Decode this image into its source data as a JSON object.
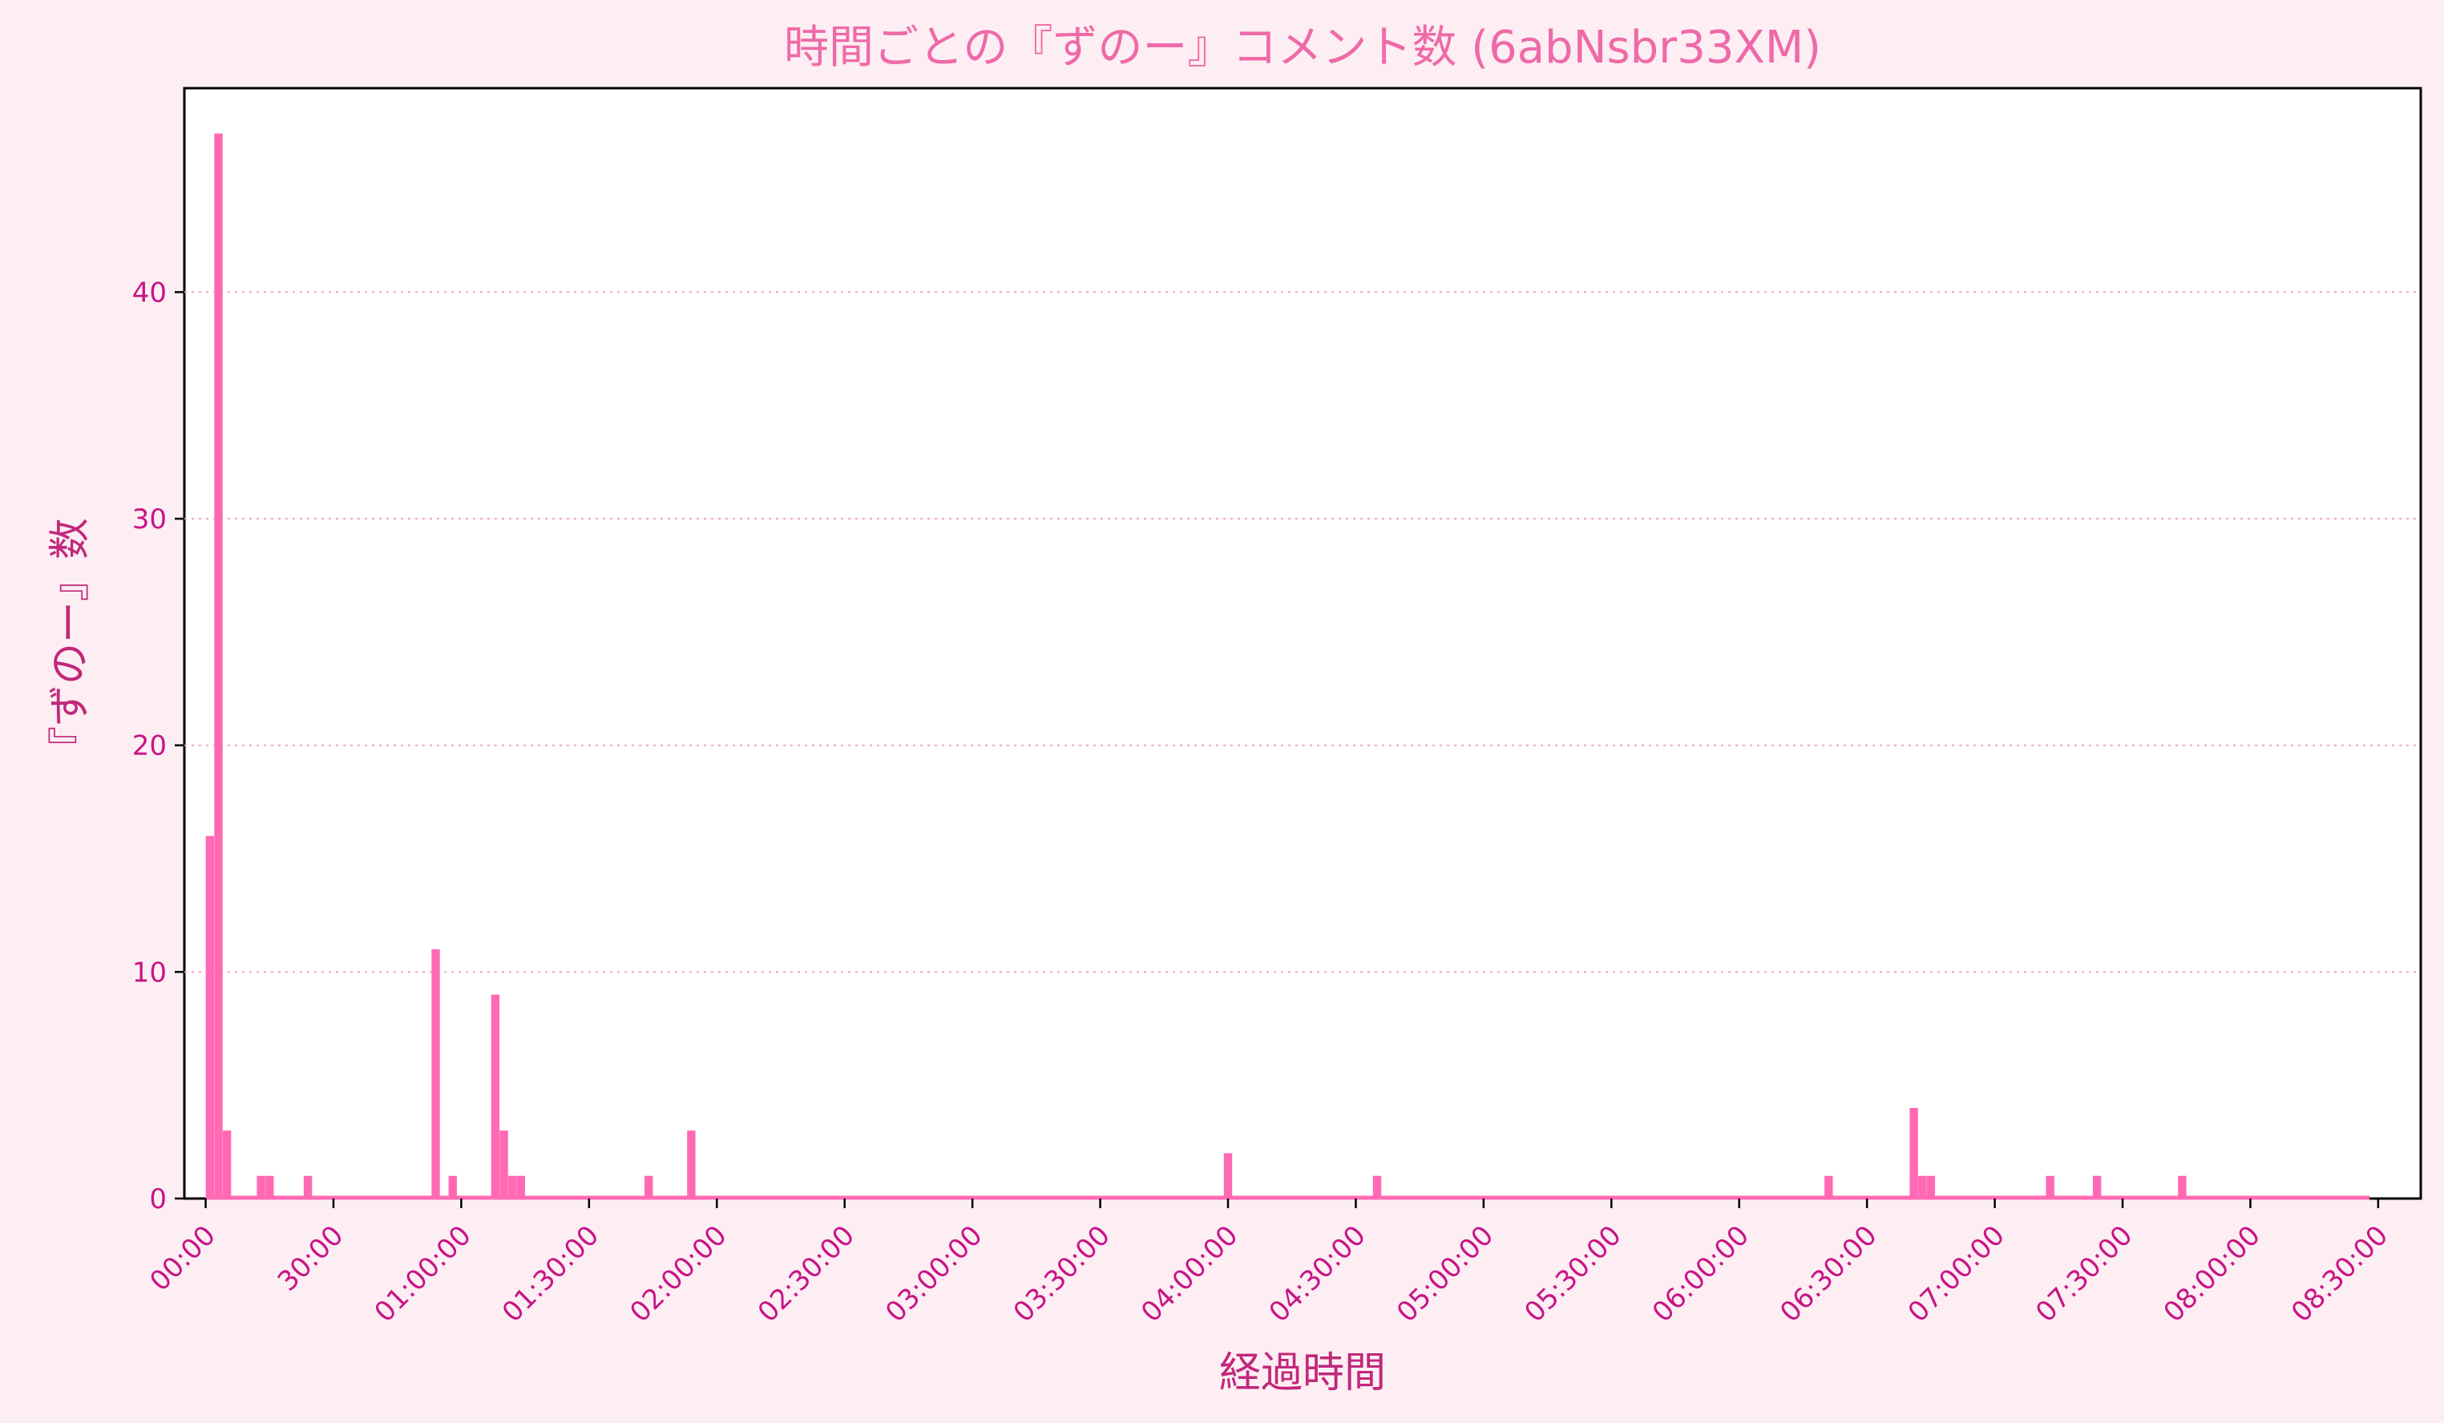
{
  "chart_data": {
    "type": "bar",
    "title": "時間ごとの『ずのー』コメント数 (6abNsbr33XM)",
    "xlabel": "経過時間",
    "ylabel": "『ずのー』数",
    "x_unit": "minutes",
    "bin_minutes": 2,
    "xlim": [
      -5,
      520
    ],
    "ylim": [
      0,
      49
    ],
    "baseline_range": [
      0,
      508
    ],
    "xticks": [
      {
        "value": 0,
        "label": "00:00"
      },
      {
        "value": 30,
        "label": "30:00"
      },
      {
        "value": 60,
        "label": "01:00:00"
      },
      {
        "value": 90,
        "label": "01:30:00"
      },
      {
        "value": 120,
        "label": "02:00:00"
      },
      {
        "value": 150,
        "label": "02:30:00"
      },
      {
        "value": 180,
        "label": "03:00:00"
      },
      {
        "value": 210,
        "label": "03:30:00"
      },
      {
        "value": 240,
        "label": "04:00:00"
      },
      {
        "value": 270,
        "label": "04:30:00"
      },
      {
        "value": 300,
        "label": "05:00:00"
      },
      {
        "value": 330,
        "label": "05:30:00"
      },
      {
        "value": 360,
        "label": "06:00:00"
      },
      {
        "value": 390,
        "label": "06:30:00"
      },
      {
        "value": 420,
        "label": "07:00:00"
      },
      {
        "value": 450,
        "label": "07:30:00"
      },
      {
        "value": 480,
        "label": "08:00:00"
      },
      {
        "value": 510,
        "label": "08:30:00"
      }
    ],
    "yticks": [
      {
        "value": 0,
        "label": "0"
      },
      {
        "value": 10,
        "label": "10"
      },
      {
        "value": 20,
        "label": "20"
      },
      {
        "value": 30,
        "label": "30"
      },
      {
        "value": 40,
        "label": "40"
      }
    ],
    "grid": "y-dotted",
    "bars": [
      {
        "x": 1,
        "value": 16
      },
      {
        "x": 3,
        "value": 47
      },
      {
        "x": 5,
        "value": 3
      },
      {
        "x": 13,
        "value": 1
      },
      {
        "x": 15,
        "value": 1
      },
      {
        "x": 24,
        "value": 1
      },
      {
        "x": 54,
        "value": 11
      },
      {
        "x": 58,
        "value": 1
      },
      {
        "x": 68,
        "value": 9
      },
      {
        "x": 70,
        "value": 3
      },
      {
        "x": 72,
        "value": 1
      },
      {
        "x": 74,
        "value": 1
      },
      {
        "x": 104,
        "value": 1
      },
      {
        "x": 114,
        "value": 3
      },
      {
        "x": 240,
        "value": 2
      },
      {
        "x": 275,
        "value": 1
      },
      {
        "x": 381,
        "value": 1
      },
      {
        "x": 401,
        "value": 4
      },
      {
        "x": 403,
        "value": 1
      },
      {
        "x": 405,
        "value": 1
      },
      {
        "x": 433,
        "value": 1
      },
      {
        "x": 444,
        "value": 1
      },
      {
        "x": 464,
        "value": 1
      }
    ]
  },
  "colors": {
    "background": "#fdeef4",
    "bar": "#ff69b4",
    "title": "#ee6aa7",
    "axis_label": "#c0287a",
    "tick_label": "#c71585",
    "grid": "#f4a0c0"
  }
}
